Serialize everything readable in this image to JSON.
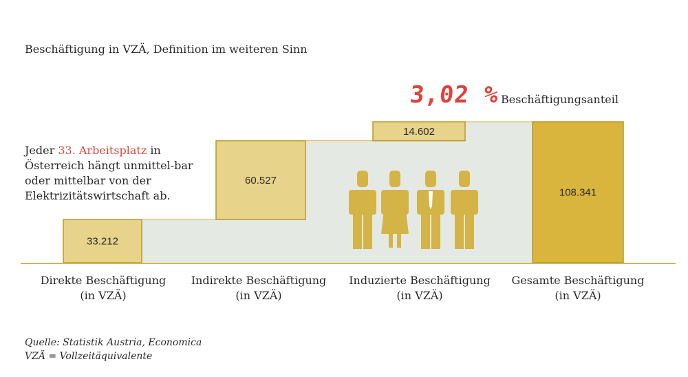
{
  "chart_data": {
    "type": "bar",
    "subtype": "waterfall",
    "title": "Beschäftigung in VZÄ, Definition im weiteren Sinn",
    "categories": [
      "Direkte Beschäftigung (in VZÄ)",
      "Indirekte Beschäftigung (in VZÄ)",
      "Induzierte Beschäftigung (in VZÄ)",
      "Gesamte Beschäftigung (in VZÄ)"
    ],
    "category_lines": [
      [
        "Direkte Beschäftigung",
        "(in VZÄ)"
      ],
      [
        "Indirekte Beschäftigung",
        "(in VZÄ)"
      ],
      [
        "Induzierte Beschäftigung",
        "(in VZÄ)"
      ],
      [
        "Gesamte Beschäftigung",
        "(in VZÄ)"
      ]
    ],
    "values": [
      33212,
      60527,
      14602,
      108341
    ],
    "value_labels": [
      "33.212",
      "60.527",
      "14.602",
      "108.341"
    ],
    "highlight": {
      "value": "3,02 %",
      "label": "Beschäftigungsanteil"
    },
    "note": {
      "before": "Jeder ",
      "highlight": "33. Arbeitsplatz",
      "after": " in Österreich hängt unmittel-bar oder mittelbar von der Elektrizitätswirtschaft ab."
    },
    "colors": {
      "bar_light": "#e8d38a",
      "bar_dark": "#d9b53e",
      "bar_border": "#b8982e",
      "band": "#e4e9e4",
      "axis": "#d9b53e",
      "people": "#d4b446",
      "highlight": "#e0413b"
    }
  },
  "footer": {
    "source": "Quelle: Statistik Austria, Economica",
    "abbr": "VZÄ = Vollzeitäquivalente"
  }
}
